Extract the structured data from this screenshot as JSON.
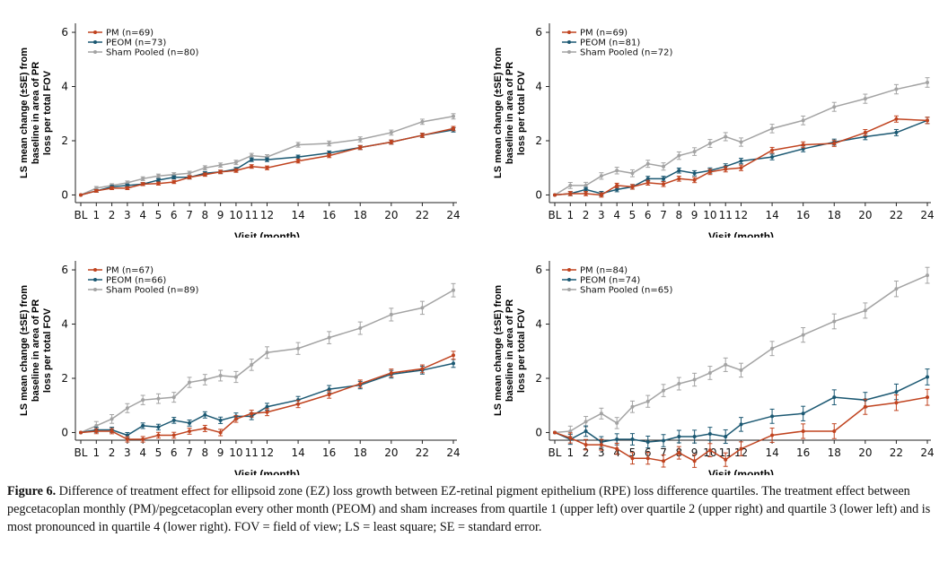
{
  "colors": {
    "pm": "#c0431f",
    "peom": "#1b5872",
    "sham": "#a3a3a3"
  },
  "caption": {
    "label": "Figure 6.",
    "text": "Difference of treatment effect for ellipsoid zone (EZ) loss growth between EZ-retinal pigment epithelium (RPE) loss difference quartiles. The treatment effect between pegcetacoplan monthly (PM)/pegcetacoplan every other month (PEOM) and sham increases from quartile 1 (upper left) over quartile 2 (upper right) and quartile 3 (lower left) and is most pronounced in quartile 4 (lower right). FOV = field of view; LS = least square; SE = standard error."
  },
  "chart_data": [
    {
      "type": "line",
      "ylabel": [
        "LS mean change (±SE) from",
        "baseline in area of PR",
        "loss per total FOV"
      ],
      "xlabel": "Visit (month)",
      "x": [
        0,
        1,
        2,
        3,
        4,
        5,
        6,
        7,
        8,
        9,
        10,
        11,
        12,
        14,
        16,
        18,
        20,
        22,
        24
      ],
      "x_tick_labels": [
        "BL",
        "1",
        "2",
        "3",
        "4",
        "5",
        "6",
        "7",
        "8",
        "9",
        "10",
        "11",
        "12",
        "14",
        "16",
        "18",
        "20",
        "22",
        "24"
      ],
      "ylim": [
        0,
        6
      ],
      "yticks": [
        0,
        2,
        4,
        6
      ],
      "legend": "top-left",
      "series": [
        {
          "name": "PM (n=69)",
          "key": "pm",
          "values": [
            0,
            0.15,
            0.25,
            0.25,
            0.4,
            0.42,
            0.48,
            0.65,
            0.75,
            0.85,
            0.9,
            1.05,
            1.0,
            1.25,
            1.45,
            1.75,
            1.95,
            2.2,
            2.45
          ],
          "se": 0.08
        },
        {
          "name": "PEOM (n=73)",
          "key": "peom",
          "values": [
            0,
            0.15,
            0.3,
            0.35,
            0.4,
            0.55,
            0.65,
            0.65,
            0.8,
            0.85,
            0.95,
            1.3,
            1.3,
            1.4,
            1.55,
            1.75,
            1.95,
            2.2,
            2.4
          ],
          "se": 0.08
        },
        {
          "name": "Sham Pooled (n=80)",
          "key": "sham",
          "values": [
            0,
            0.25,
            0.35,
            0.45,
            0.6,
            0.7,
            0.75,
            0.8,
            1.0,
            1.1,
            1.2,
            1.45,
            1.4,
            1.85,
            1.9,
            2.05,
            2.3,
            2.7,
            2.9
          ],
          "se": 0.1
        }
      ]
    },
    {
      "type": "line",
      "ylabel": [
        "LS mean change (±SE) from",
        "baseline in area of PR",
        "loss per total FOV"
      ],
      "xlabel": "Visit (month)",
      "x": [
        0,
        1,
        2,
        3,
        4,
        5,
        6,
        7,
        8,
        9,
        10,
        11,
        12,
        14,
        16,
        18,
        20,
        22,
        24
      ],
      "x_tick_labels": [
        "BL",
        "1",
        "2",
        "3",
        "4",
        "5",
        "6",
        "7",
        "8",
        "9",
        "10",
        "11",
        "12",
        "14",
        "16",
        "18",
        "20",
        "22",
        "24"
      ],
      "ylim": [
        0,
        6
      ],
      "yticks": [
        0,
        2,
        4,
        6
      ],
      "legend": "top-left",
      "series": [
        {
          "name": "PM (n=69)",
          "key": "pm",
          "values": [
            0,
            0.05,
            0.05,
            0.0,
            0.35,
            0.3,
            0.45,
            0.4,
            0.6,
            0.55,
            0.85,
            0.95,
            1.0,
            1.65,
            1.85,
            1.9,
            2.3,
            2.8,
            2.75
          ],
          "se": 0.12
        },
        {
          "name": "PEOM (n=81)",
          "key": "peom",
          "values": [
            0,
            0.05,
            0.2,
            0.05,
            0.2,
            0.3,
            0.6,
            0.6,
            0.9,
            0.8,
            0.9,
            1.05,
            1.25,
            1.4,
            1.7,
            1.95,
            2.15,
            2.3,
            2.75
          ],
          "se": 0.12
        },
        {
          "name": "Sham Pooled (n=72)",
          "key": "sham",
          "values": [
            0,
            0.35,
            0.35,
            0.7,
            0.9,
            0.8,
            1.15,
            1.05,
            1.45,
            1.6,
            1.9,
            2.15,
            1.95,
            2.45,
            2.75,
            3.25,
            3.55,
            3.9,
            4.15
          ],
          "se": 0.18
        }
      ]
    },
    {
      "type": "line",
      "ylabel": [
        "LS mean change (±SE) from",
        "baseline in area of PR",
        "loss per total FOV"
      ],
      "xlabel": "Visit (month)",
      "x": [
        0,
        1,
        2,
        3,
        4,
        5,
        6,
        7,
        8,
        9,
        10,
        11,
        12,
        14,
        16,
        18,
        20,
        22,
        24
      ],
      "x_tick_labels": [
        "BL",
        "1",
        "2",
        "3",
        "4",
        "5",
        "6",
        "7",
        "8",
        "9",
        "10",
        "11",
        "12",
        "14",
        "16",
        "18",
        "20",
        "22",
        "24"
      ],
      "ylim": [
        0,
        6
      ],
      "yticks": [
        0,
        2,
        4,
        6
      ],
      "legend": "top-left",
      "series": [
        {
          "name": "PM (n=67)",
          "key": "pm",
          "values": [
            0,
            0.05,
            0.05,
            -0.25,
            -0.25,
            -0.1,
            -0.1,
            0.05,
            0.15,
            0.0,
            0.5,
            0.7,
            0.75,
            1.05,
            1.4,
            1.8,
            2.2,
            2.35,
            2.85
          ],
          "se": 0.15
        },
        {
          "name": "PEOM (n=66)",
          "key": "peom",
          "values": [
            0,
            0.1,
            0.1,
            -0.1,
            0.25,
            0.2,
            0.45,
            0.35,
            0.65,
            0.45,
            0.6,
            0.6,
            0.95,
            1.2,
            1.6,
            1.75,
            2.15,
            2.3,
            2.55
          ],
          "se": 0.15
        },
        {
          "name": "Sham Pooled (n=89)",
          "key": "sham",
          "values": [
            0,
            0.25,
            0.5,
            0.9,
            1.2,
            1.25,
            1.3,
            1.85,
            1.95,
            2.1,
            2.05,
            2.5,
            2.95,
            3.1,
            3.5,
            3.85,
            4.35,
            4.6,
            5.25
          ],
          "se": 0.25
        }
      ]
    },
    {
      "type": "line",
      "ylabel": [
        "LS mean change (±SE) from",
        "baseline in area of PR",
        "loss per total FOV"
      ],
      "xlabel": "Visit (month)",
      "x": [
        0,
        1,
        2,
        3,
        4,
        5,
        6,
        7,
        8,
        9,
        10,
        11,
        12,
        14,
        16,
        18,
        20,
        22,
        24
      ],
      "x_tick_labels": [
        "BL",
        "1",
        "2",
        "3",
        "4",
        "5",
        "6",
        "7",
        "8",
        "9",
        "10",
        "11",
        "12",
        "14",
        "16",
        "18",
        "20",
        "22",
        "24"
      ],
      "ylim": [
        0,
        6
      ],
      "yticks": [
        0,
        2,
        4,
        6
      ],
      "legend": "top-left",
      "series": [
        {
          "name": "PM (n=84)",
          "key": "pm",
          "values": [
            0,
            -0.2,
            -0.45,
            -0.45,
            -0.6,
            -0.95,
            -0.95,
            -1.05,
            -0.75,
            -1.05,
            -0.65,
            -1.0,
            -0.6,
            -0.1,
            0.05,
            0.05,
            0.95,
            1.1,
            1.3
          ],
          "se": 0.3
        },
        {
          "name": "PEOM (n=74)",
          "key": "peom",
          "values": [
            0,
            -0.25,
            0.05,
            -0.35,
            -0.25,
            -0.25,
            -0.35,
            -0.3,
            -0.15,
            -0.15,
            -0.05,
            -0.15,
            0.3,
            0.6,
            0.7,
            1.3,
            1.2,
            1.5,
            2.05
          ],
          "se": 0.3
        },
        {
          "name": "Sham Pooled (n=65)",
          "key": "sham",
          "values": [
            0,
            0.05,
            0.4,
            0.7,
            0.35,
            0.95,
            1.15,
            1.55,
            1.8,
            1.95,
            2.2,
            2.5,
            2.3,
            3.1,
            3.6,
            4.1,
            4.5,
            5.3,
            5.8
          ],
          "se": 0.3
        }
      ]
    }
  ]
}
